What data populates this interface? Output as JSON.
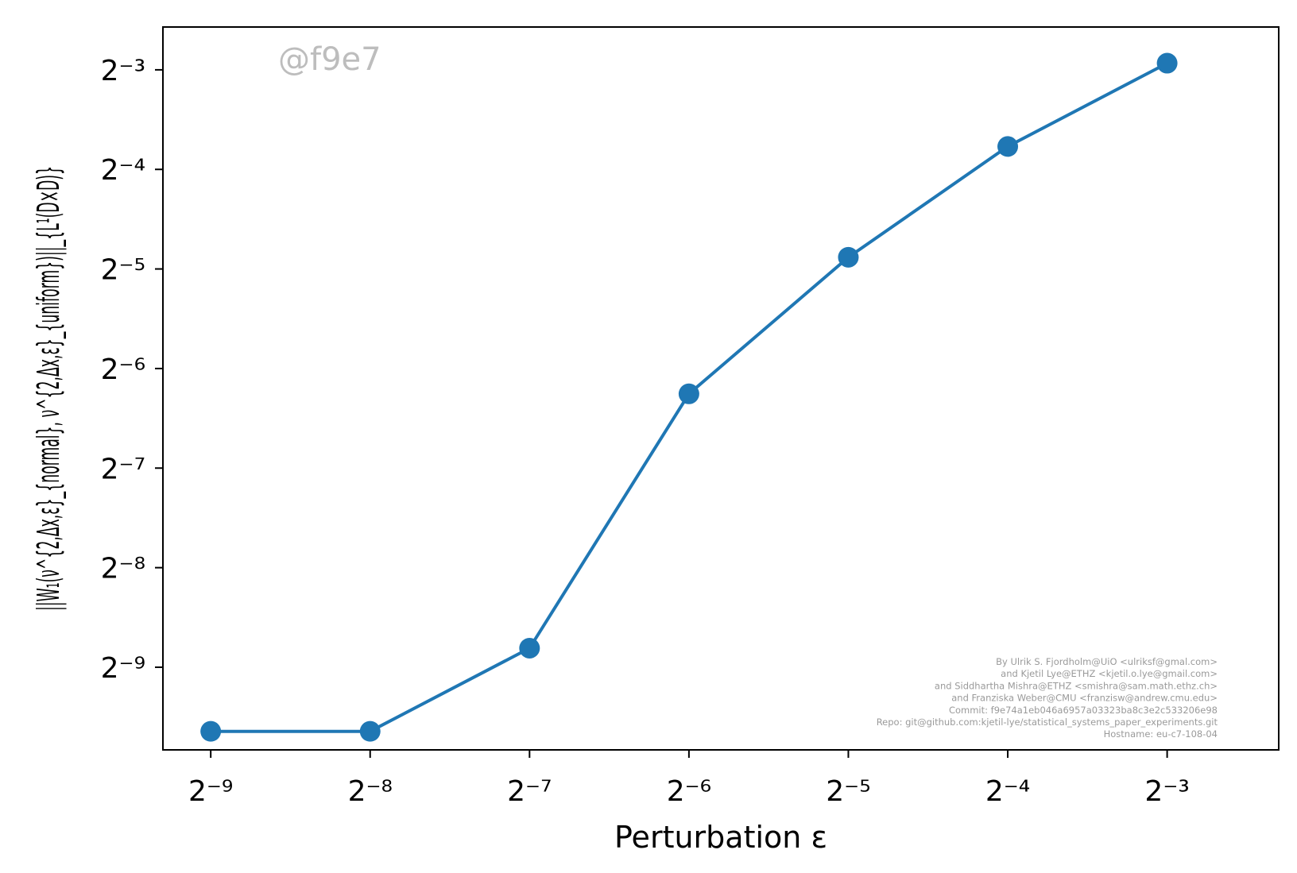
{
  "chart_data": {
    "type": "line",
    "title": "",
    "xlabel": "Perturbation ε",
    "ylabel": "||W₁(ν^{2,Δx,ε}_{normal}, ν^{2,Δx,ε}_{uniform})||_{L¹(D×D)}",
    "x_scale": "log2",
    "y_scale": "log2",
    "x_tick_labels": [
      "2⁻⁹",
      "2⁻⁸",
      "2⁻⁷",
      "2⁻⁶",
      "2⁻⁵",
      "2⁻⁴",
      "2⁻³"
    ],
    "y_tick_labels": [
      "2⁻⁹",
      "2⁻⁸",
      "2⁻⁷",
      "2⁻⁶",
      "2⁻⁵",
      "2⁻⁴",
      "2⁻³"
    ],
    "x_ticks_exp": [
      -9,
      -8,
      -7,
      -6,
      -5,
      -4,
      -3
    ],
    "y_ticks_exp": [
      -9,
      -8,
      -7,
      -6,
      -5,
      -4,
      -3
    ],
    "xlim_exp": [
      -9.3,
      -2.3
    ],
    "ylim_exp": [
      -9.83,
      -2.57
    ],
    "grid": false,
    "legend": null,
    "series": [
      {
        "color": "#1f77b4",
        "marker": "circle",
        "x": [
          0.001953125,
          0.00390625,
          0.0078125,
          0.015625,
          0.03125,
          0.0625,
          0.125
        ],
        "y": [
          0.00125,
          0.00125,
          0.00223,
          0.0131,
          0.0339,
          0.0733,
          0.1309
        ]
      }
    ]
  },
  "watermark": "@f9e7",
  "credits": [
    "By Ulrik S. Fjordholm@UiO <ulriksf@gmal.com>",
    "and Kjetil Lye@ETHZ <kjetil.o.lye@gmail.com>",
    "and Siddhartha Mishra@ETHZ <smishra@sam.math.ethz.ch>",
    "and Franziska Weber@CMU <franzisw@andrew.cmu.edu>",
    "Commit: f9e74a1eb046a6957a03323ba8c3e2c533206e98",
    "Repo: git@github.com:kjetil-lye/statistical_systems_paper_experiments.git",
    "Hostname: eu-c7-108-04"
  ]
}
